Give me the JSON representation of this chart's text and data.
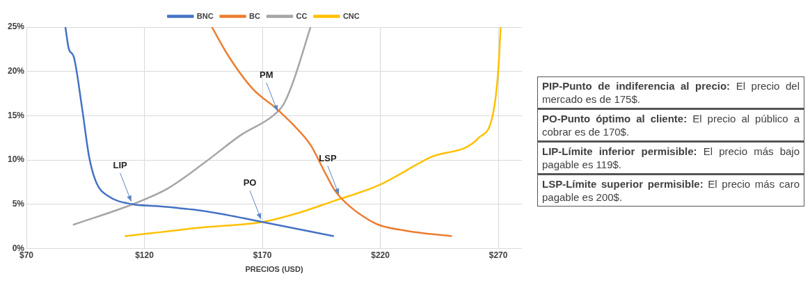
{
  "chart_data": {
    "type": "line",
    "xlabel": "PRECIOS (USD)",
    "legend": "top",
    "grid": true,
    "marker": "none",
    "line_style": "solid",
    "xlim": [
      70,
      280
    ],
    "xticks": [
      {
        "value": 70,
        "label": "$70"
      },
      {
        "value": 120,
        "label": "$120"
      },
      {
        "value": 170,
        "label": "$170"
      },
      {
        "value": 220,
        "label": "$220"
      },
      {
        "value": 270,
        "label": "$270"
      }
    ],
    "ylim": [
      0,
      25
    ],
    "yticks": [
      {
        "value": 0,
        "label": "0%"
      },
      {
        "value": 5,
        "label": "5%"
      },
      {
        "value": 10,
        "label": "10%"
      },
      {
        "value": 15,
        "label": "15%"
      },
      {
        "value": 20,
        "label": "20%"
      },
      {
        "value": 25,
        "label": "25%"
      }
    ],
    "series": [
      {
        "name": "BNC",
        "color": "#4472c4",
        "x": [
          86.5,
          88,
          90,
          93.5,
          96.6,
          99.7,
          104.8,
          115,
          125,
          140.4,
          150.6,
          170,
          200
        ],
        "values": [
          25,
          22.5,
          21.7,
          16,
          10.3,
          7.4,
          5.9,
          5,
          4.8,
          4.4,
          4,
          3,
          1.4
        ]
      },
      {
        "name": "BC",
        "color": "#ed7d31",
        "x": [
          148.6,
          155.7,
          166,
          176,
          178,
          183,
          190.4,
          196.5,
          200.6,
          205.2,
          210.7,
          219,
          231,
          250
        ],
        "values": [
          25,
          21.7,
          18,
          15.8,
          15.3,
          14,
          11.7,
          8.6,
          6.6,
          5.2,
          4,
          2.7,
          2,
          1.4
        ]
      },
      {
        "name": "CC",
        "color": "#a5a5a5",
        "x": [
          90,
          115,
          130,
          145.5,
          160.8,
          175,
          179,
          183,
          190.4
        ],
        "values": [
          2.7,
          5,
          6.8,
          9.7,
          12.8,
          15.1,
          16.3,
          18.8,
          25
        ]
      },
      {
        "name": "CNC",
        "color": "#ffc000",
        "x": [
          112,
          145.5,
          170,
          185,
          200.6,
          219,
          241.3,
          261.7,
          267.9,
          270,
          271
        ],
        "values": [
          1.4,
          2.4,
          3,
          4,
          5.4,
          7.1,
          10.3,
          12.5,
          15.4,
          20.2,
          25
        ]
      }
    ],
    "annotations": [
      {
        "text": "PM",
        "x": 177,
        "y": 15.2
      },
      {
        "text": "LIP",
        "x": 115,
        "y": 5
      },
      {
        "text": "PO",
        "x": 170,
        "y": 3
      },
      {
        "text": "LSP",
        "x": 203,
        "y": 5.8
      },
      "PIP-Punto de indiferencia al precio: El precio del mercado es de 175$.",
      "PO-Punto óptimo al cliente: El precio al público a cobrar es de 170$.",
      "LIP-Límite inferior permisible: El precio más bajo pagable es 119$.",
      "LSP-Límite superior permisible: El precio más caro pagable es 200$."
    ]
  }
}
